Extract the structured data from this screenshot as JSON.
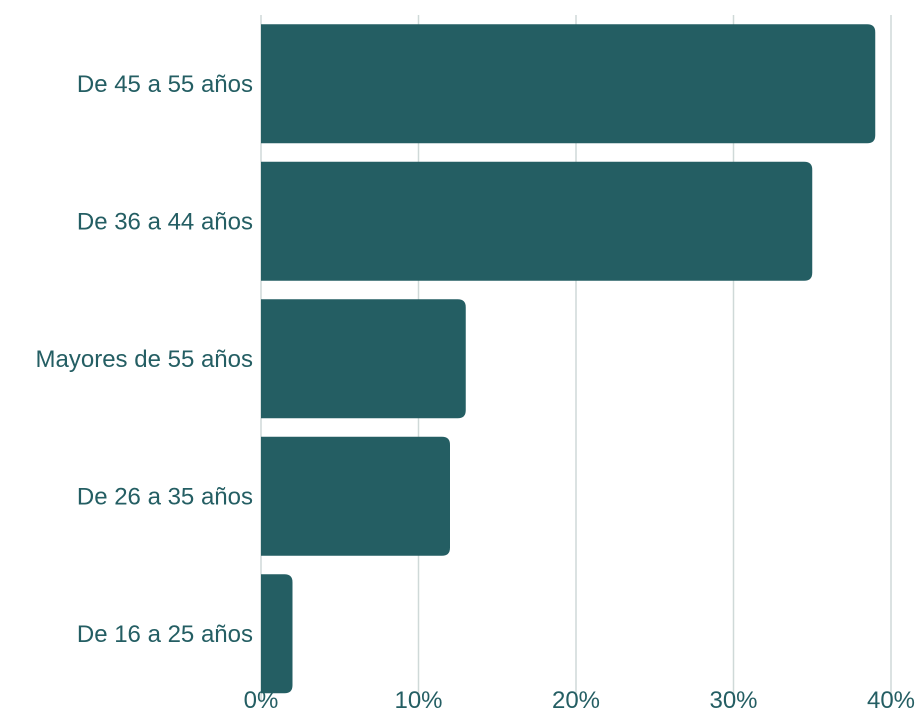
{
  "chart_data": {
    "type": "bar",
    "orientation": "horizontal",
    "title": "",
    "xlabel": "",
    "ylabel": "",
    "categories": [
      "De 45 a 55 años",
      "De 36 a 44 años ",
      "Mayores de 55 años",
      "De 26 a 35 años",
      "De 16 a 25 años "
    ],
    "values": [
      39,
      35,
      13,
      12,
      2
    ],
    "xlim": [
      0,
      40
    ],
    "x_ticks": [
      0,
      10,
      20,
      30,
      40
    ],
    "x_tick_labels": [
      "0%",
      "10%",
      "20%",
      "30%",
      "40%"
    ],
    "grid": "vertical",
    "legend": "none",
    "colors": {
      "bar": "#245e63",
      "text": "#245e63",
      "grid": "#cfd9d8",
      "axis": "#cfd9d8"
    }
  }
}
